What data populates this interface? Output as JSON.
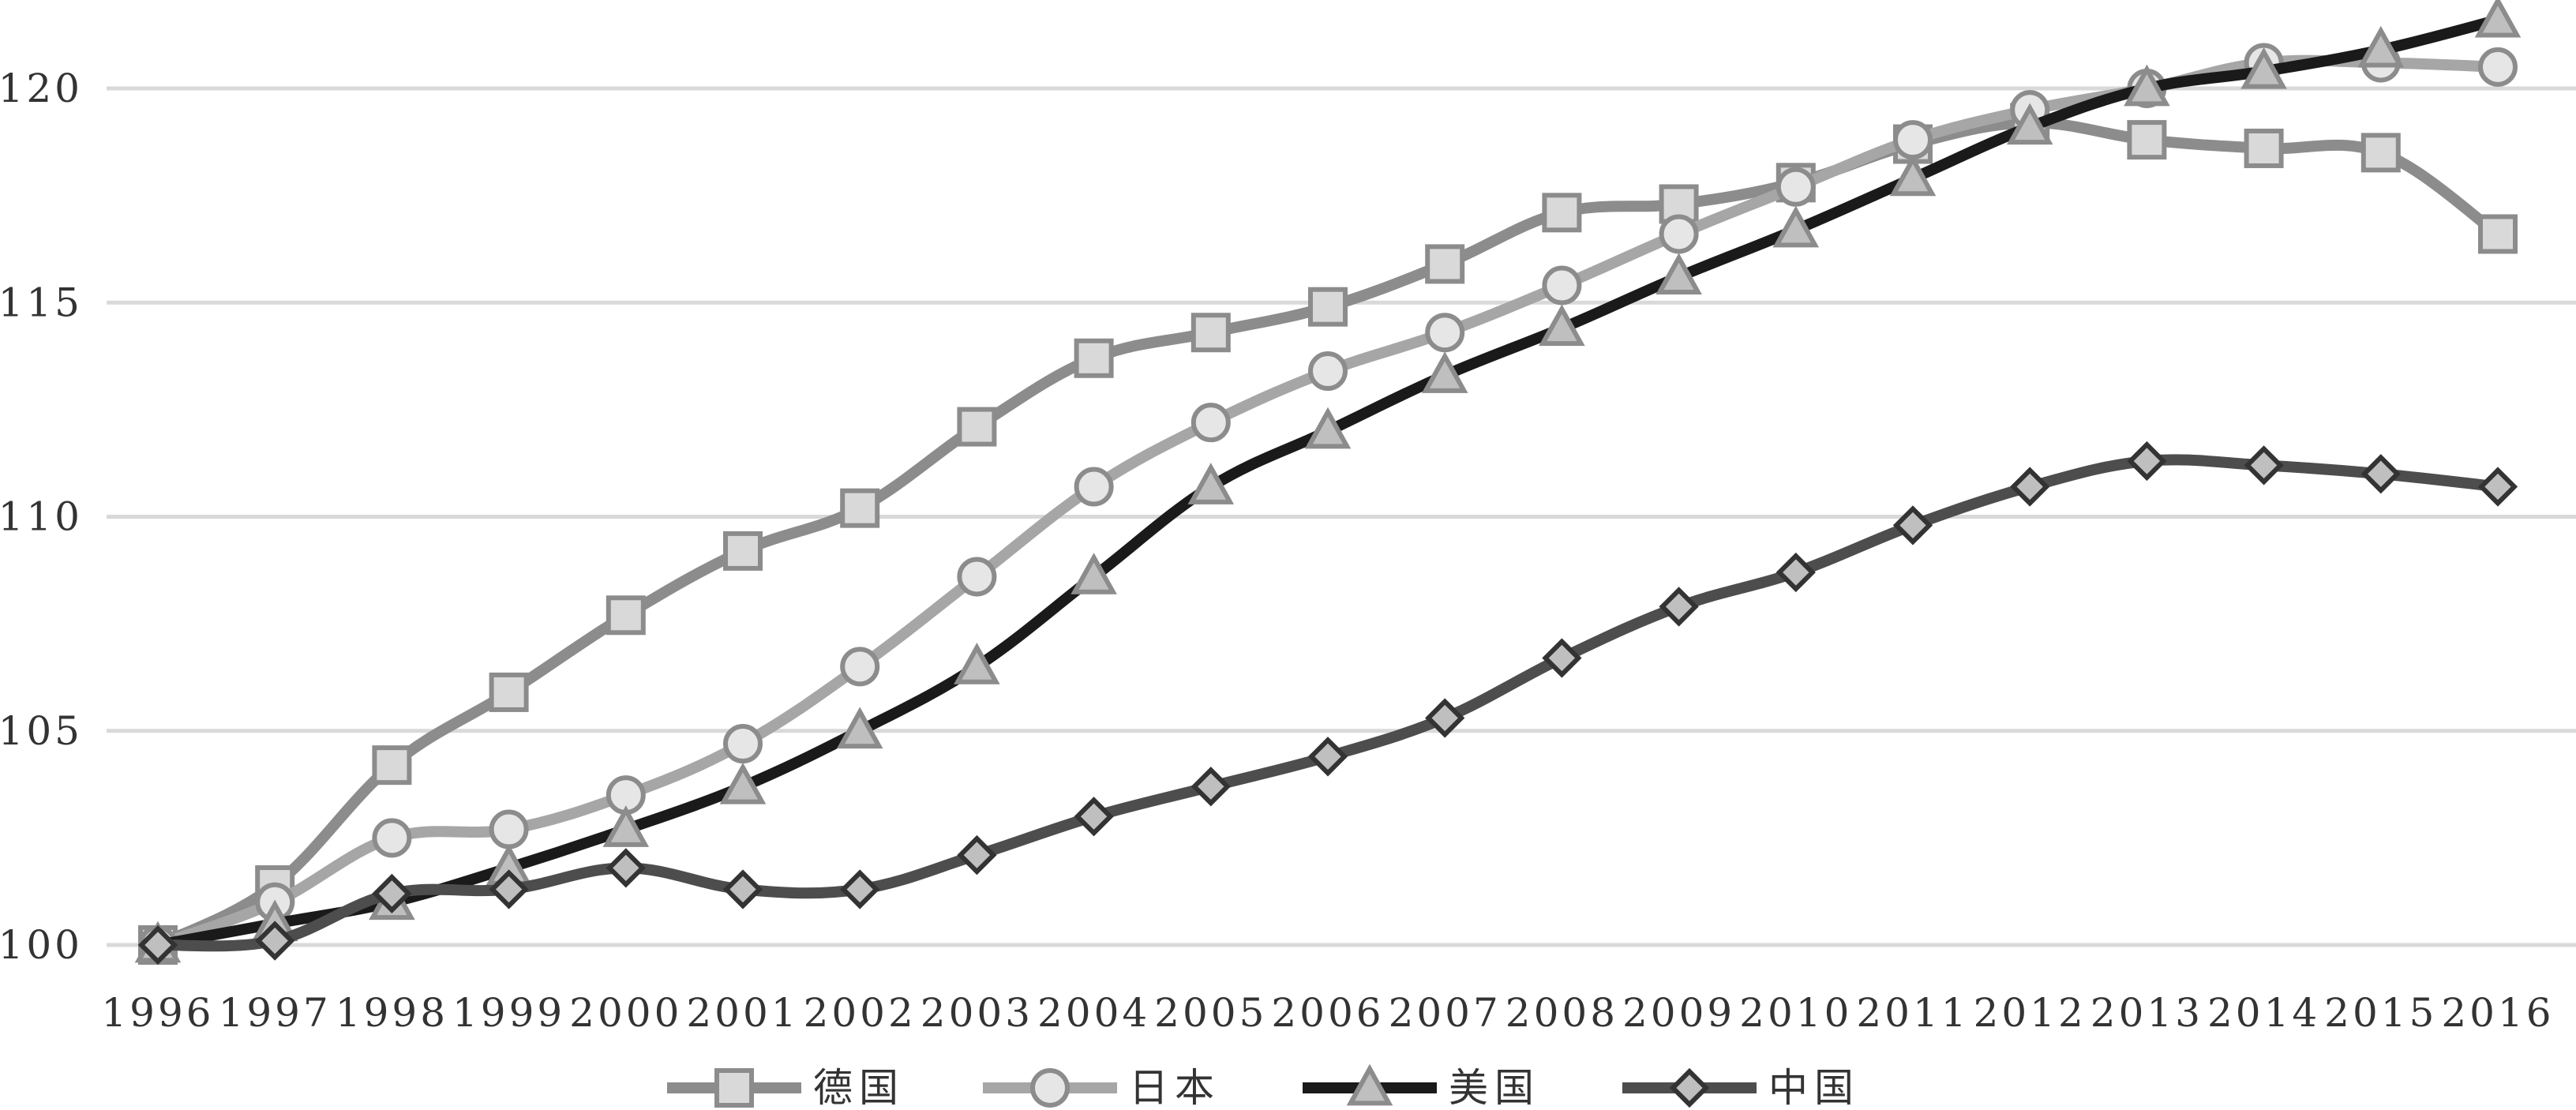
{
  "chart_data": {
    "type": "line",
    "title": "",
    "xlabel": "",
    "ylabel": "",
    "ylim": [
      100,
      121.8
    ],
    "y_ticks": [
      100,
      105,
      110,
      115,
      120
    ],
    "grid": "horizontal",
    "legend_position": "bottom",
    "x": [
      "1996",
      "1997",
      "1998",
      "1999",
      "2000",
      "2001",
      "2002",
      "2003",
      "2004",
      "2005",
      "2006",
      "2007",
      "2008",
      "2009",
      "2010",
      "2011",
      "2012",
      "2013",
      "2014",
      "2015",
      "2016"
    ],
    "series": [
      {
        "name": "德国",
        "marker": "square",
        "color": "#8c8c8c",
        "marker_fill": "#d9d9d9",
        "values": [
          100,
          101.4,
          104.2,
          105.9,
          107.7,
          109.2,
          110.2,
          112.1,
          113.7,
          114.3,
          114.9,
          115.9,
          117.1,
          117.3,
          117.8,
          118.7,
          119.2,
          118.8,
          118.6,
          118.5,
          116.6
        ]
      },
      {
        "name": "日本",
        "marker": "circle",
        "color": "#a6a6a6",
        "marker_fill": "#e6e6e6",
        "values": [
          100,
          101.0,
          102.5,
          102.7,
          103.5,
          104.7,
          106.5,
          108.6,
          110.7,
          112.2,
          113.4,
          114.3,
          115.4,
          116.6,
          117.7,
          118.8,
          119.5,
          120.0,
          120.6,
          120.6,
          120.5
        ]
      },
      {
        "name": "美国",
        "marker": "triangle",
        "color": "#1a1a1a",
        "marker_fill": "#bfbfbf",
        "values": [
          100,
          100.5,
          101.0,
          101.8,
          102.7,
          103.7,
          105.0,
          106.5,
          108.6,
          110.7,
          112.0,
          113.3,
          114.4,
          115.6,
          116.7,
          117.9,
          119.1,
          120.0,
          120.4,
          120.9,
          121.6
        ]
      },
      {
        "name": "中国",
        "marker": "diamond",
        "color": "#4d4d4d",
        "marker_fill": "#bfbfbf",
        "values": [
          100,
          100.1,
          101.2,
          101.3,
          101.8,
          101.3,
          101.3,
          102.1,
          103.0,
          103.7,
          104.4,
          105.3,
          106.7,
          107.9,
          108.7,
          109.8,
          110.7,
          111.3,
          111.2,
          111.0,
          110.7
        ]
      }
    ]
  }
}
